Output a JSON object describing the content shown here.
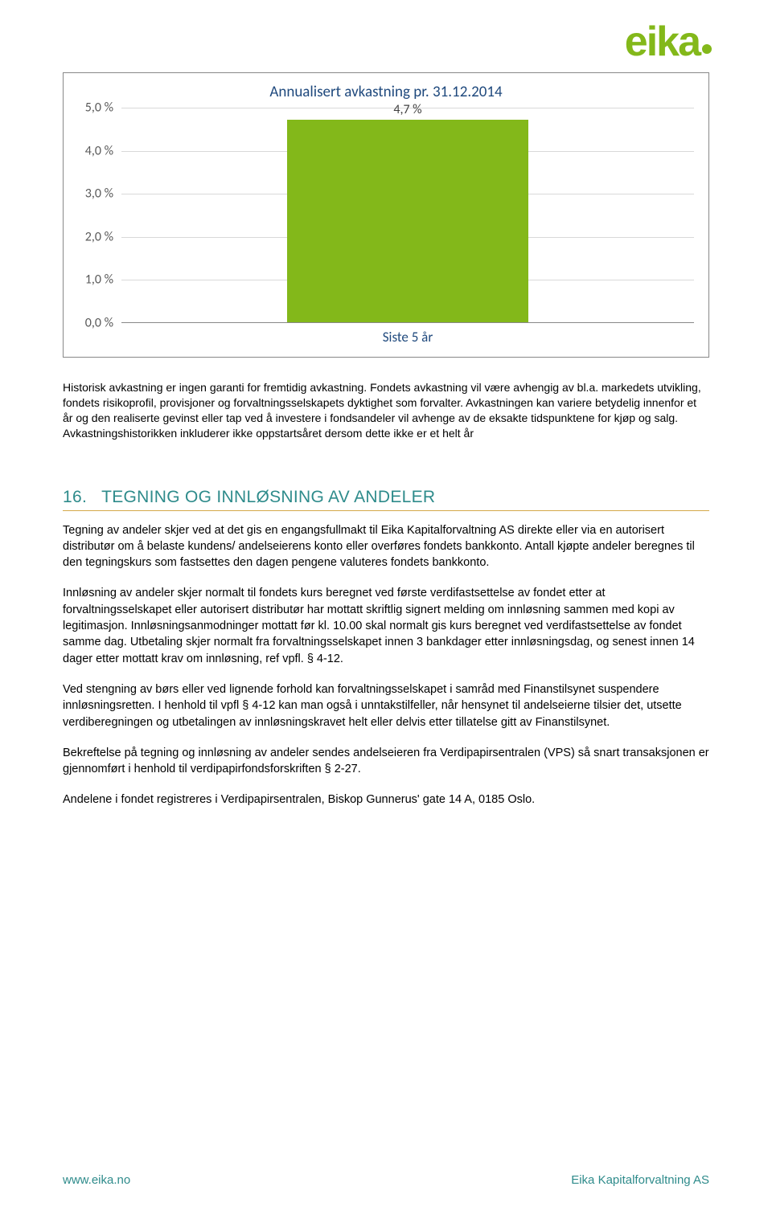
{
  "logo": {
    "text": "eika"
  },
  "chart": {
    "type": "bar",
    "title": "Annualisert avkastning pr. 31.12.2014",
    "title_color": "#1f497d",
    "title_fontsize": 19,
    "categories": [
      "Siste 5 år"
    ],
    "values": [
      4.7
    ],
    "value_labels": [
      "4,7 %"
    ],
    "bar_color": "#83b81a",
    "bar_width_pct": 42,
    "bar_left_pct": 29,
    "ylim": [
      0,
      5
    ],
    "ytick_step": 1,
    "ytick_labels": [
      "0,0 %",
      "1,0 %",
      "2,0 %",
      "3,0 %",
      "4,0 %",
      "5,0 %"
    ],
    "ylabel_color": "#595959",
    "grid_color": "#d9d9d9",
    "border_color": "#888888",
    "xlabel_color": "#1f497d",
    "background_color": "#ffffff"
  },
  "disclaimer": "Historisk avkastning er ingen garanti for fremtidig avkastning. Fondets avkastning vil være avhengig av bl.a. markedets utvikling, fondets risikoprofil, provisjoner og forvaltningsselskapets dyktighet som forvalter. Avkastningen kan variere betydelig innenfor et år og den realiserte gevinst eller tap ved å investere i fondsandeler vil avhenge av de eksakte tidspunktene for kjøp og salg. Avkastningshistorikken inkluderer ikke oppstartsåret dersom dette ikke er et helt år",
  "section": {
    "number": "16.",
    "title": "TEGNING OG INNLØSNING AV ANDELER",
    "heading_color": "#2e8b8b",
    "underline_color": "#d4a84a",
    "paragraphs": [
      "Tegning av andeler skjer ved at det gis en engangsfullmakt til Eika Kapitalforvaltning AS direkte eller via en autorisert distributør om å belaste kundens/ andelseierens konto eller overføres fondets bankkonto. Antall kjøpte andeler beregnes til den tegningskurs som fastsettes den dagen pengene valuteres fondets bankkonto.",
      "Innløsning av andeler skjer normalt til fondets kurs beregnet ved første verdifastsettelse av fondet etter at forvaltningsselskapet eller autorisert distributør har mottatt skriftlig signert melding om innløsning sammen med kopi av legitimasjon.  Innløsningsanmodninger mottatt før kl. 10.00 skal normalt gis kurs beregnet ved verdifastsettelse av fondet samme dag. Utbetaling skjer normalt fra forvaltningsselskapet innen 3 bankdager etter innløsningsdag, og senest innen 14 dager etter mottatt krav om innløsning, ref vpfl. § 4-12.",
      "Ved stengning av børs eller ved lignende forhold kan forvaltningsselskapet i samråd med Finanstilsynet suspendere innløsningsretten. I henhold til vpfl § 4-12 kan man også i unntakstilfeller, når hensynet til andelseierne tilsier det, utsette verdiberegningen og utbetalingen av innløsningskravet helt eller delvis etter tillatelse gitt av Finanstilsynet.",
      "Bekreftelse på tegning og innløsning av andeler sendes andelseieren fra Verdipapirsentralen (VPS) så snart transaksjonen er gjennomført i henhold til verdipapirfondsforskriften § 2-27.",
      "Andelene i fondet registreres i Verdipapirsentralen, Biskop Gunnerus' gate 14 A, 0185 Oslo."
    ]
  },
  "footer": {
    "left": "www.eika.no",
    "right": "Eika Kapitalforvaltning AS",
    "color": "#2e8b8b"
  }
}
